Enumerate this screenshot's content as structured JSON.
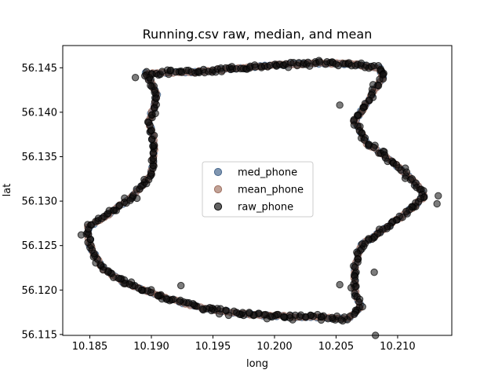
{
  "chart_data": {
    "type": "scatter",
    "title": "Running.csv raw, median, and mean",
    "xlabel": "long",
    "ylabel": "lat",
    "xlim": [
      10.1828,
      10.2144
    ],
    "ylim": [
      56.1149,
      56.1475
    ],
    "xticks": [
      10.185,
      10.19,
      10.195,
      10.2,
      10.205,
      10.21
    ],
    "xtick_labels": [
      "10.185",
      "10.190",
      "10.195",
      "10.200",
      "10.205",
      "10.210"
    ],
    "yticks": [
      56.115,
      56.12,
      56.125,
      56.13,
      56.135,
      56.14,
      56.145
    ],
    "ytick_labels": [
      "56.115",
      "56.120",
      "56.125",
      "56.130",
      "56.135",
      "56.140",
      "56.145"
    ],
    "grid": false,
    "legend_position": "center",
    "series": [
      {
        "name": "med_phone",
        "color": "#4a6a8f",
        "alpha": 0.6
      },
      {
        "name": "mean_phone",
        "color": "#a07060",
        "alpha": 0.55
      },
      {
        "name": "raw_phone",
        "color": "#101010",
        "alpha": 0.55
      }
    ],
    "route_waypoints": [
      [
        10.1895,
        56.1444
      ],
      [
        10.193,
        56.1445
      ],
      [
        10.196,
        56.1448
      ],
      [
        10.2,
        56.1453
      ],
      [
        10.204,
        56.1455
      ],
      [
        10.2065,
        56.1454
      ],
      [
        10.2085,
        56.145
      ],
      [
        10.2088,
        56.144
      ],
      [
        10.2075,
        56.141
      ],
      [
        10.2065,
        56.139
      ],
      [
        10.2075,
        56.1365
      ],
      [
        10.2095,
        56.1345
      ],
      [
        10.2115,
        56.132
      ],
      [
        10.2122,
        56.1305
      ],
      [
        10.2105,
        56.1285
      ],
      [
        10.2085,
        56.1265
      ],
      [
        10.207,
        56.125
      ],
      [
        10.2065,
        56.1225
      ],
      [
        10.2065,
        56.12
      ],
      [
        10.207,
        56.118
      ],
      [
        10.206,
        56.1168
      ],
      [
        10.202,
        56.117
      ],
      [
        10.198,
        56.1172
      ],
      [
        10.194,
        56.118
      ],
      [
        10.191,
        56.1192
      ],
      [
        10.188,
        56.1207
      ],
      [
        10.186,
        56.1225
      ],
      [
        10.185,
        56.125
      ],
      [
        10.1848,
        56.127
      ],
      [
        10.1865,
        56.1285
      ],
      [
        10.1885,
        56.1305
      ],
      [
        10.19,
        56.133
      ],
      [
        10.1903,
        56.136
      ],
      [
        10.1898,
        56.139
      ],
      [
        10.1905,
        56.142
      ],
      [
        10.1895,
        56.1444
      ]
    ],
    "outlier_points": [
      [
        10.2133,
        56.1306
      ],
      [
        10.2132,
        56.1297
      ],
      [
        10.2053,
        56.1206
      ],
      [
        10.2081,
        56.122
      ],
      [
        10.2053,
        56.1408
      ],
      [
        10.2082,
        56.1149
      ],
      [
        10.2088,
        56.1442
      ],
      [
        10.1887,
        56.1439
      ],
      [
        10.1843,
        56.1262
      ],
      [
        10.1924,
        56.1205
      ]
    ]
  }
}
